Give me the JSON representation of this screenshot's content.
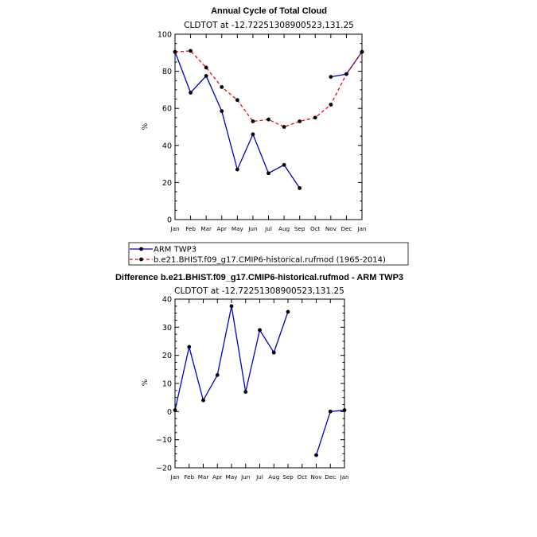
{
  "colors": {
    "obs": "#0000cc",
    "model": "#ff0000",
    "diff": "#0000cc",
    "marker": "#000000"
  },
  "chart_data": [
    {
      "type": "line",
      "title": "Annual Cycle of Total Cloud",
      "subtitle": "CLDTOT at -12.72251308900523,131.25",
      "ylabel": "%",
      "xlabel": "",
      "ylim": [
        0,
        100
      ],
      "yticks": [
        0,
        20,
        40,
        60,
        80,
        100
      ],
      "categories": [
        "Jan",
        "Feb",
        "Mar",
        "Apr",
        "May",
        "Jun",
        "Jul",
        "Aug",
        "Sep",
        "Oct",
        "Nov",
        "Dec",
        "Jan"
      ],
      "legend_position": "below-left",
      "series": [
        {
          "name": "ARM TWP3",
          "style": "solid",
          "values": [
            90.5,
            68.5,
            77.5,
            58.5,
            27,
            46,
            25,
            29.5,
            17,
            null,
            77,
            78.5,
            90.5
          ]
        },
        {
          "name": "b.e21.BHIST.f09_g17.CMIP6-historical.rufmod (1965-2014)",
          "style": "dashed",
          "values": [
            90.5,
            91,
            82,
            71.5,
            64.5,
            53,
            54,
            50,
            53,
            55,
            62,
            78.5,
            90.5
          ]
        }
      ]
    },
    {
      "type": "line",
      "title": "Difference b.e21.BHIST.f09_g17.CMIP6-historical.rufmod - ARM TWP3",
      "subtitle": "CLDTOT at -12.72251308900523,131.25",
      "ylabel": "%",
      "xlabel": "",
      "ylim": [
        -20,
        40
      ],
      "yticks": [
        -20,
        -10,
        0,
        10,
        20,
        30,
        40
      ],
      "categories": [
        "Jan",
        "Feb",
        "Mar",
        "Apr",
        "May",
        "Jun",
        "Jul",
        "Aug",
        "Sep",
        "Oct",
        "Nov",
        "Dec",
        "Jan"
      ],
      "series": [
        {
          "name": "Difference",
          "style": "solid",
          "values": [
            0.5,
            23,
            4,
            13,
            37.5,
            7,
            29,
            21,
            35.5,
            null,
            -15.5,
            0,
            0.5
          ]
        }
      ]
    }
  ]
}
